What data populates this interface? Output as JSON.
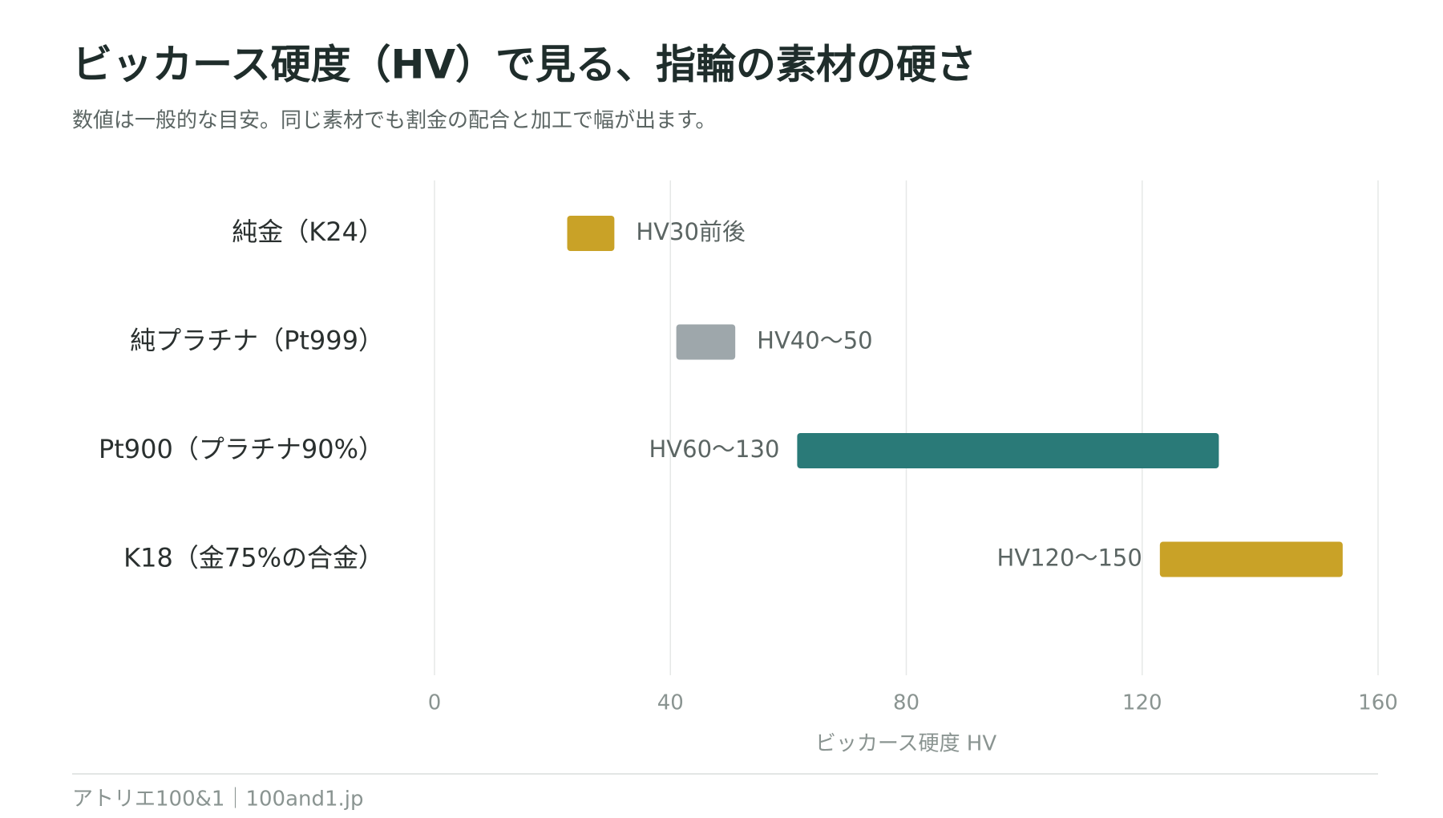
{
  "chart_data": {
    "type": "range-bar",
    "title": "ビッカース硬度（HV）で見る、指輪の素材の硬さ",
    "subtitle": "数値は一般的な目安。同じ素材でも割金の配合と加工で幅が出ます。",
    "categories": [
      "純金（K24）",
      "純プラチナ（Pt999）",
      "Pt900（プラチナ90%）",
      "K18（金75%の合金）"
    ],
    "values": [
      [
        22.5,
        30.5
      ],
      [
        41,
        51
      ],
      [
        61.5,
        133
      ],
      [
        123,
        154
      ]
    ],
    "value_labels": [
      "HV30前後",
      "HV40〜50",
      "HV60〜130",
      "HV120〜150"
    ],
    "colors": [
      "#c9a227",
      "#9ea7ab",
      "#2a7a78",
      "#c9a227"
    ],
    "xlim": [
      0,
      160
    ],
    "xticks": [
      0,
      40,
      80,
      120,
      160
    ],
    "xlabel": "ビッカース硬度 HV",
    "grid": true,
    "footer": "アトリエ100&1｜100and1.jp"
  }
}
